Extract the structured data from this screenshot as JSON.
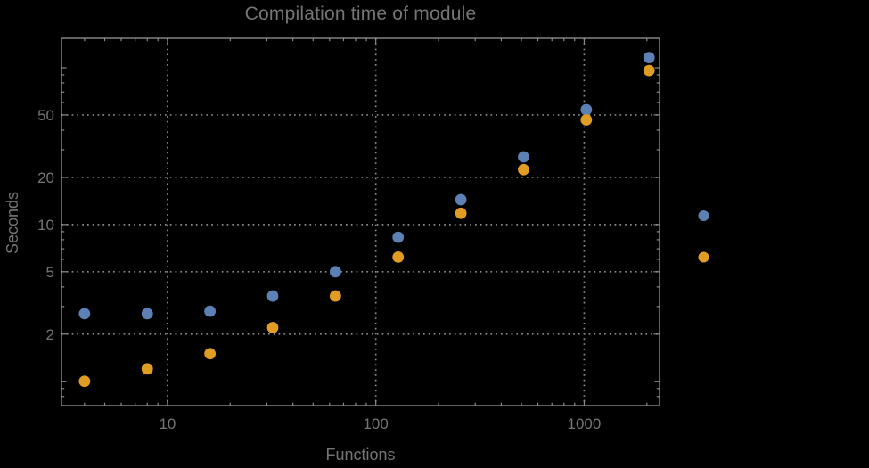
{
  "title": "Compilation time of module",
  "axis": {
    "xlabel": "Functions",
    "ylabel": "Seconds"
  },
  "colors": {
    "background": "#000000",
    "frame": "#8b8b8b",
    "grid": "#8b8b8b",
    "label_text": "#757575",
    "series_blue": "#5e81b5",
    "series_orange": "#e19c24"
  },
  "legend": {
    "markers": [
      "#5e81b5",
      "#e19c24"
    ],
    "labels_visible": false
  },
  "chart_data": {
    "type": "scatter",
    "xscale": "log",
    "yscale": "log",
    "grid": "dotted",
    "title": "Compilation time of module",
    "xlabel": "Functions",
    "ylabel": "Seconds",
    "xlim": [
      3.1,
      2300
    ],
    "ylim": [
      0.7,
      154
    ],
    "x": [
      4,
      8,
      16,
      32,
      64,
      128,
      256,
      512,
      1024,
      2048
    ],
    "series": [
      {
        "name": "series-blue",
        "color": "#5e81b5",
        "values": [
          2.7,
          2.7,
          2.8,
          3.5,
          5.0,
          8.3,
          14.4,
          27,
          54,
          116
        ]
      },
      {
        "name": "series-orange",
        "color": "#e19c24",
        "values": [
          1.0,
          1.2,
          1.5,
          2.2,
          3.5,
          6.2,
          11.8,
          22.4,
          46.5,
          96
        ]
      }
    ],
    "xticks": [
      {
        "v": 10,
        "label": "10"
      },
      {
        "v": 100,
        "label": "100"
      },
      {
        "v": 1000,
        "label": "1000"
      }
    ],
    "yticks": [
      {
        "v": 2,
        "label": "2"
      },
      {
        "v": 5,
        "label": "5"
      },
      {
        "v": 10,
        "label": "10"
      },
      {
        "v": 20,
        "label": "20"
      },
      {
        "v": 50,
        "label": "50"
      }
    ],
    "legend_position": "right-of-frame"
  }
}
